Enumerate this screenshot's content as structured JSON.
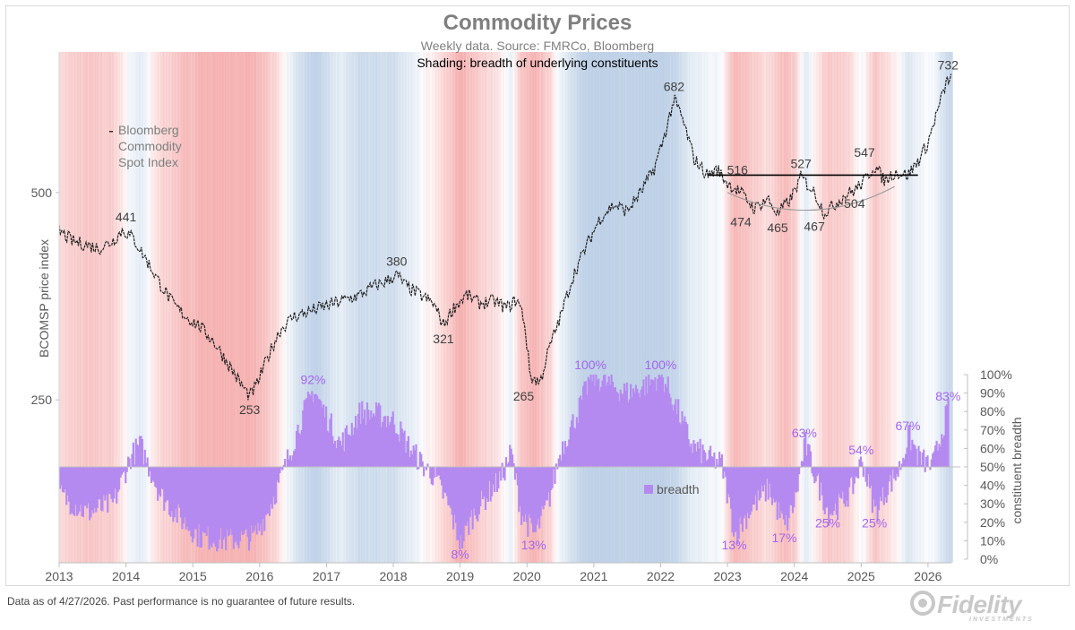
{
  "chart_data": {
    "type": "line",
    "title": "Commodity Prices",
    "subtitle": "Weekly data.  Source: FMRCo, Bloomberg",
    "subtitle2": "Shading: breadth of underlying constituents",
    "ylabel": "BCOMSP price index",
    "y2label": "constituent breadth",
    "y_scale": "log",
    "ylim": [
      145,
      800
    ],
    "y_ticks": [
      "250",
      "500"
    ],
    "y2_ticks": [
      "0%",
      "10%",
      "20%",
      "30%",
      "40%",
      "50%",
      "60%",
      "70%",
      "80%",
      "90%",
      "100%"
    ],
    "x_ticks": [
      "2013",
      "2014",
      "2015",
      "2016",
      "2017",
      "2018",
      "2019",
      "2020",
      "2021",
      "2022",
      "2023",
      "2024",
      "2025",
      "2026"
    ],
    "xlim": [
      2013.0,
      2026.35
    ],
    "series": [
      {
        "name": "Bloomberg Commodity Spot Index",
        "x": [
          2013.0,
          2013.2,
          2013.4,
          2013.6,
          2013.8,
          2013.95,
          2014.1,
          2014.3,
          2014.5,
          2014.7,
          2014.9,
          2015.1,
          2015.3,
          2015.5,
          2015.7,
          2015.85,
          2015.95,
          2016.1,
          2016.3,
          2016.5,
          2016.7,
          2016.9,
          2017.1,
          2017.3,
          2017.5,
          2017.7,
          2017.9,
          2018.05,
          2018.2,
          2018.4,
          2018.6,
          2018.75,
          2018.9,
          2019.1,
          2019.3,
          2019.5,
          2019.7,
          2019.85,
          2019.95,
          2020.05,
          2020.2,
          2020.3,
          2020.5,
          2020.7,
          2020.9,
          2021.1,
          2021.3,
          2021.5,
          2021.7,
          2021.9,
          2022.05,
          2022.2,
          2022.3,
          2022.5,
          2022.7,
          2022.85,
          2023.0,
          2023.2,
          2023.4,
          2023.6,
          2023.75,
          2023.95,
          2024.1,
          2024.3,
          2024.45,
          2024.6,
          2024.75,
          2024.9,
          2025.05,
          2025.2,
          2025.35,
          2025.5,
          2025.7,
          2025.85,
          2026.0,
          2026.15,
          2026.3
        ],
        "values": [
          440,
          425,
          420,
          415,
          425,
          441,
          430,
          400,
          370,
          345,
          330,
          320,
          305,
          285,
          265,
          253,
          262,
          285,
          315,
          330,
          335,
          340,
          345,
          350,
          355,
          365,
          372,
          380,
          365,
          355,
          345,
          321,
          340,
          355,
          345,
          348,
          340,
          350,
          330,
          270,
          265,
          290,
          330,
          380,
          420,
          460,
          480,
          470,
          500,
          540,
          600,
          682,
          650,
          560,
          530,
          540,
          516,
          500,
          474,
          490,
          465,
          490,
          527,
          500,
          467,
          480,
          495,
          504,
          520,
          547,
          520,
          535,
          530,
          555,
          590,
          660,
          732
        ]
      },
      {
        "name": "breadth",
        "x": [
          2013.0,
          2013.4,
          2013.8,
          2014.05,
          2014.2,
          2014.5,
          2014.8,
          2015.1,
          2015.5,
          2015.9,
          2016.1,
          2016.35,
          2016.6,
          2016.8,
          2016.95,
          2017.2,
          2017.5,
          2017.8,
          2018.0,
          2018.2,
          2018.45,
          2018.6,
          2018.8,
          2019.0,
          2019.15,
          2019.4,
          2019.6,
          2019.75,
          2019.9,
          2020.1,
          2020.3,
          2020.5,
          2020.75,
          2020.95,
          2021.2,
          2021.5,
          2021.8,
          2022.0,
          2022.25,
          2022.45,
          2022.7,
          2022.9,
          2023.1,
          2023.35,
          2023.6,
          2023.85,
          2024.0,
          2024.15,
          2024.3,
          2024.5,
          2024.7,
          2024.85,
          2025.0,
          2025.2,
          2025.4,
          2025.55,
          2025.7,
          2025.85,
          2026.05,
          2026.3
        ],
        "values": [
          35,
          25,
          30,
          55,
          62,
          35,
          22,
          12,
          10,
          12,
          25,
          48,
          75,
          92,
          80,
          62,
          80,
          78,
          75,
          62,
          50,
          45,
          30,
          8,
          22,
          35,
          44,
          58,
          25,
          13,
          30,
          60,
          80,
          100,
          95,
          90,
          95,
          100,
          80,
          62,
          55,
          52,
          13,
          28,
          38,
          17,
          32,
          63,
          45,
          25,
          30,
          38,
          54,
          25,
          40,
          48,
          67,
          55,
          50,
          83
        ]
      }
    ],
    "annotations": [
      {
        "x": 2014.0,
        "value": 441,
        "label": "441"
      },
      {
        "x": 2015.85,
        "value": 253,
        "label": "253"
      },
      {
        "x": 2018.05,
        "value": 380,
        "label": "380"
      },
      {
        "x": 2018.75,
        "value": 321,
        "label": "321"
      },
      {
        "x": 2019.95,
        "value": 265,
        "label": "265"
      },
      {
        "x": 2022.2,
        "value": 682,
        "label": "682"
      },
      {
        "x": 2023.15,
        "value": 516,
        "label": "516"
      },
      {
        "x": 2023.2,
        "value": 474,
        "label": "474"
      },
      {
        "x": 2023.75,
        "value": 465,
        "label": "465"
      },
      {
        "x": 2024.1,
        "value": 527,
        "label": "527"
      },
      {
        "x": 2024.3,
        "value": 467,
        "label": "467"
      },
      {
        "x": 2024.9,
        "value": 504,
        "label": "504"
      },
      {
        "x": 2025.05,
        "value": 547,
        "label": "547"
      },
      {
        "x": 2026.3,
        "value": 732,
        "label": "732"
      }
    ],
    "breadth_annotations": [
      {
        "x": 2016.8,
        "value": 92,
        "label": "92%"
      },
      {
        "x": 2019.0,
        "value": 8,
        "label": "8%"
      },
      {
        "x": 2020.1,
        "value": 13,
        "label": "13%"
      },
      {
        "x": 2020.95,
        "value": 100,
        "label": "100%"
      },
      {
        "x": 2022.0,
        "value": 100,
        "label": "100%"
      },
      {
        "x": 2023.1,
        "value": 13,
        "label": "13%"
      },
      {
        "x": 2023.85,
        "value": 17,
        "label": "17%"
      },
      {
        "x": 2024.15,
        "value": 63,
        "label": "63%"
      },
      {
        "x": 2024.5,
        "value": 25,
        "label": "25%"
      },
      {
        "x": 2025.0,
        "value": 54,
        "label": "54%"
      },
      {
        "x": 2025.2,
        "value": 25,
        "label": "25%"
      },
      {
        "x": 2025.7,
        "value": 67,
        "label": "67%"
      },
      {
        "x": 2026.3,
        "value": 83,
        "label": "83%"
      }
    ],
    "resistance_line": {
      "x": [
        2022.7,
        2025.85
      ],
      "value": 530
    },
    "legend_text": "Bloomberg Commodity Spot Index",
    "legend_lines": [
      "Bloomberg",
      "Commodity",
      "Spot Index"
    ],
    "breadth_legend": "breadth",
    "colors": {
      "price": "#222222",
      "breadth": "#b58af0",
      "breadth_label": "#a366f0",
      "red_shade": "#f4a6a6",
      "blue_shade": "#b8cce4"
    }
  },
  "footnote": "Data as of 4/27/2026. Past performance is no guarantee of future results.",
  "logo": {
    "text": "Fidelity",
    "sub": "INVESTMENTS"
  }
}
